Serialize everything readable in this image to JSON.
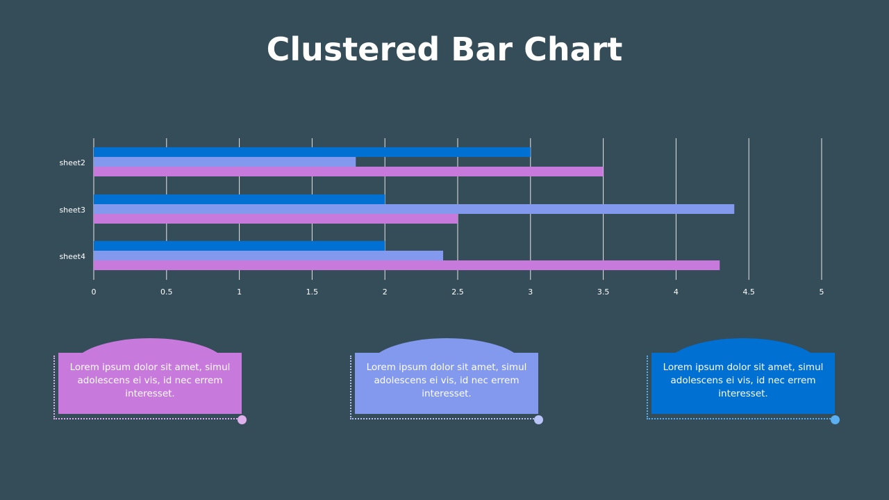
{
  "title": "Clustered Bar Chart",
  "chart_data": {
    "type": "bar",
    "orientation": "horizontal",
    "categories": [
      "sheet2",
      "sheet3",
      "sheet4"
    ],
    "series": [
      {
        "values": [
          3.0,
          2.0,
          2.0
        ],
        "color": "#0070d2"
      },
      {
        "values": [
          1.8,
          4.4,
          2.4
        ],
        "color": "#8299ee"
      },
      {
        "values": [
          3.5,
          2.5,
          4.3
        ],
        "color": "#c879dc"
      }
    ],
    "xlim": [
      0,
      5
    ],
    "xticks": [
      "0",
      "0.5",
      "1",
      "1.5",
      "2",
      "2.5",
      "3",
      "3.5",
      "4",
      "4.5",
      "5"
    ],
    "grid": true
  },
  "cards": [
    {
      "text": "Lorem ipsum dolor sit amet, simul adolescens ei vis, id nec errem interesset.",
      "color": "#c879dc",
      "accent": "#e0b0ec"
    },
    {
      "text": "Lorem ipsum dolor sit amet, simul adolescens ei vis, id nec errem interesset.",
      "color": "#8299ee",
      "accent": "#b8c4f8"
    },
    {
      "text": "Lorem ipsum dolor sit amet, simul adolescens ei vis, id nec errem interesset.",
      "color": "#0070d2",
      "accent": "#5ab0f0"
    }
  ]
}
